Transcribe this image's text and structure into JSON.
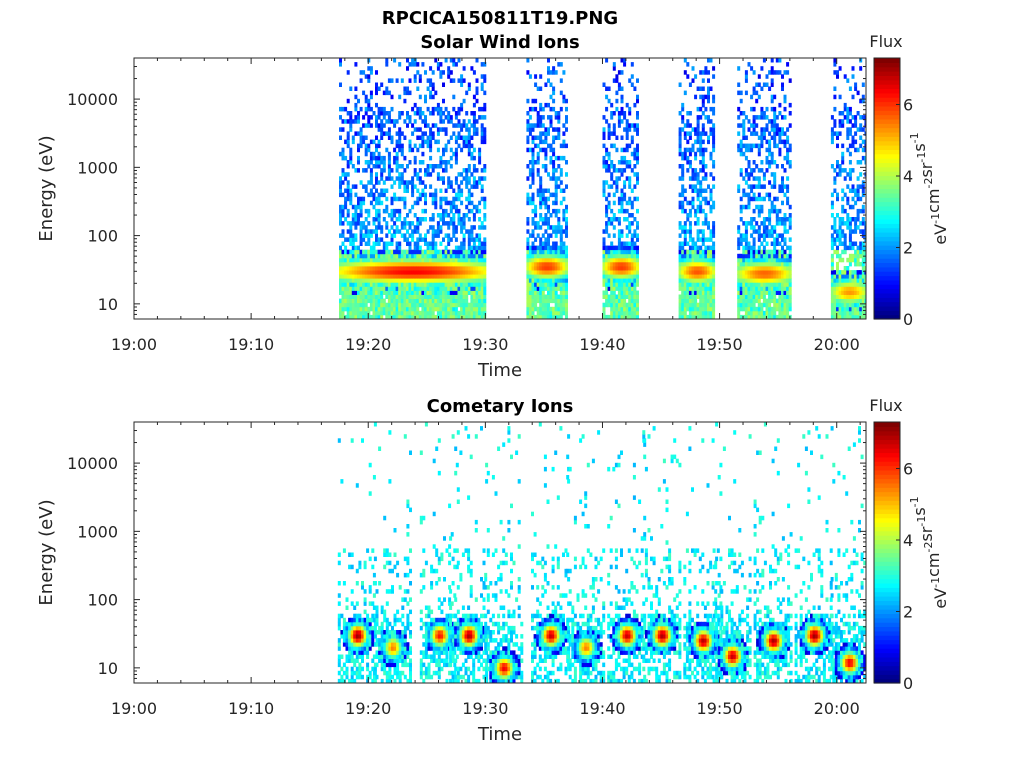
{
  "figure": {
    "filename": "RPCICA150811T19.PNG"
  },
  "chart_data": [
    {
      "type": "heatmap",
      "title": "Solar Wind Ions",
      "xlabel": "Time",
      "ylabel": "Energy (eV)",
      "x_ticks": [
        "19:00",
        "19:10",
        "19:20",
        "19:30",
        "19:40",
        "19:50",
        "20:00"
      ],
      "x_range_minutes": [
        0,
        62.5
      ],
      "y_ticks": [
        "10",
        "100",
        "1000",
        "10000"
      ],
      "y_scale": "log",
      "y_range_ev": [
        6,
        40000
      ],
      "colorbar": {
        "title": "Flux",
        "label": "eV-1cm-2sr-1s-1",
        "ticks": [
          "0",
          "2",
          "4",
          "6"
        ],
        "range": [
          0,
          7.3
        ],
        "colormap": "jet"
      },
      "bursts": [
        {
          "start_min": 17.5,
          "end_min": 30.0,
          "peak_ev": 30,
          "peak_flux": 6.4
        },
        {
          "start_min": 33.5,
          "end_min": 36.8,
          "peak_ev": 35,
          "peak_flux": 6.0
        },
        {
          "start_min": 40.0,
          "end_min": 43.0,
          "peak_ev": 35,
          "peak_flux": 6.0
        },
        {
          "start_min": 46.5,
          "end_min": 49.5,
          "peak_ev": 30,
          "peak_flux": 5.8
        },
        {
          "start_min": 51.5,
          "end_min": 56.0,
          "peak_ev": 28,
          "peak_flux": 5.7
        },
        {
          "start_min": 59.5,
          "end_min": 62.5,
          "peak_ev": 15,
          "peak_flux": 5.3
        }
      ]
    },
    {
      "type": "heatmap",
      "title": "Cometary Ions",
      "xlabel": "Time",
      "ylabel": "Energy (eV)",
      "x_ticks": [
        "19:00",
        "19:10",
        "19:20",
        "19:30",
        "19:40",
        "19:50",
        "20:00"
      ],
      "x_range_minutes": [
        0,
        62.5
      ],
      "y_ticks": [
        "10",
        "100",
        "1000",
        "10000"
      ],
      "y_scale": "log",
      "y_range_ev": [
        6,
        40000
      ],
      "colorbar": {
        "title": "Flux",
        "label": "eV-1cm-2sr-1s-1",
        "ticks": [
          "0",
          "2",
          "4",
          "6"
        ],
        "range": [
          0,
          7.3
        ],
        "colormap": "jet"
      },
      "bursts": [
        {
          "center_min": 19.0,
          "peak_ev": 30,
          "peak_flux": 7.1
        },
        {
          "center_min": 22.0,
          "peak_ev": 20,
          "peak_flux": 5.5
        },
        {
          "center_min": 26.0,
          "peak_ev": 30,
          "peak_flux": 6.3
        },
        {
          "center_min": 28.5,
          "peak_ev": 30,
          "peak_flux": 7.0
        },
        {
          "center_min": 31.5,
          "peak_ev": 10,
          "peak_flux": 6.5
        },
        {
          "center_min": 35.5,
          "peak_ev": 30,
          "peak_flux": 6.8
        },
        {
          "center_min": 38.5,
          "peak_ev": 20,
          "peak_flux": 5.5
        },
        {
          "center_min": 42.0,
          "peak_ev": 30,
          "peak_flux": 6.8
        },
        {
          "center_min": 45.0,
          "peak_ev": 30,
          "peak_flux": 7.0
        },
        {
          "center_min": 48.5,
          "peak_ev": 25,
          "peak_flux": 6.9
        },
        {
          "center_min": 51.0,
          "peak_ev": 15,
          "peak_flux": 6.8
        },
        {
          "center_min": 54.5,
          "peak_ev": 25,
          "peak_flux": 7.0
        },
        {
          "center_min": 58.0,
          "peak_ev": 30,
          "peak_flux": 7.1
        },
        {
          "center_min": 61.0,
          "peak_ev": 12,
          "peak_flux": 6.5
        }
      ]
    }
  ]
}
